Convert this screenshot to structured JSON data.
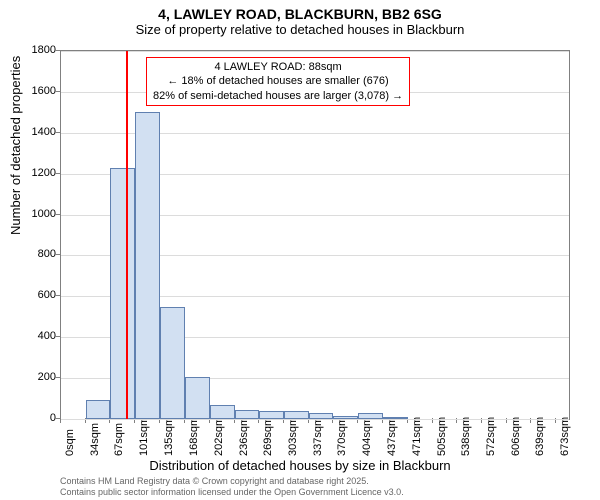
{
  "title": "4, LAWLEY ROAD, BLACKBURN, BB2 6SG",
  "subtitle": "Size of property relative to detached houses in Blackburn",
  "title_fontsize": 14,
  "subtitle_fontsize": 13,
  "chart": {
    "type": "histogram",
    "background_color": "#ffffff",
    "border_color": "#808080",
    "grid_color": "#dcdcdc",
    "bar_fill": "#d2e0f2",
    "bar_border": "#6080b0",
    "marker_color": "#ff0000",
    "marker_x": 88,
    "title_fontsize": 14,
    "label_fontsize": 13,
    "tick_fontsize": 11,
    "ylim": [
      0,
      1800
    ],
    "ytick_step": 200,
    "yticks": [
      0,
      200,
      400,
      600,
      800,
      1000,
      1200,
      1400,
      1600,
      1800
    ],
    "xlim": [
      0,
      690
    ],
    "xticks": [
      {
        "v": 0,
        "label": "0sqm"
      },
      {
        "v": 34,
        "label": "34sqm"
      },
      {
        "v": 67,
        "label": "67sqm"
      },
      {
        "v": 101,
        "label": "101sqm"
      },
      {
        "v": 135,
        "label": "135sqm"
      },
      {
        "v": 168,
        "label": "168sqm"
      },
      {
        "v": 202,
        "label": "202sqm"
      },
      {
        "v": 236,
        "label": "236sqm"
      },
      {
        "v": 269,
        "label": "269sqm"
      },
      {
        "v": 303,
        "label": "303sqm"
      },
      {
        "v": 337,
        "label": "337sqm"
      },
      {
        "v": 370,
        "label": "370sqm"
      },
      {
        "v": 404,
        "label": "404sqm"
      },
      {
        "v": 437,
        "label": "437sqm"
      },
      {
        "v": 471,
        "label": "471sqm"
      },
      {
        "v": 505,
        "label": "505sqm"
      },
      {
        "v": 538,
        "label": "538sqm"
      },
      {
        "v": 572,
        "label": "572sqm"
      },
      {
        "v": 606,
        "label": "606sqm"
      },
      {
        "v": 639,
        "label": "639sqm"
      },
      {
        "v": 673,
        "label": "673sqm"
      }
    ],
    "bars": [
      {
        "x0": 0,
        "x1": 34,
        "count": 0
      },
      {
        "x0": 34,
        "x1": 67,
        "count": 95
      },
      {
        "x0": 67,
        "x1": 101,
        "count": 1230
      },
      {
        "x0": 101,
        "x1": 135,
        "count": 1500
      },
      {
        "x0": 135,
        "x1": 168,
        "count": 550
      },
      {
        "x0": 168,
        "x1": 202,
        "count": 205
      },
      {
        "x0": 202,
        "x1": 236,
        "count": 70
      },
      {
        "x0": 236,
        "x1": 269,
        "count": 45
      },
      {
        "x0": 269,
        "x1": 303,
        "count": 40
      },
      {
        "x0": 303,
        "x1": 337,
        "count": 40
      },
      {
        "x0": 337,
        "x1": 370,
        "count": 30
      },
      {
        "x0": 370,
        "x1": 404,
        "count": 15
      },
      {
        "x0": 404,
        "x1": 437,
        "count": 30
      },
      {
        "x0": 437,
        "x1": 471,
        "count": 10
      },
      {
        "x0": 471,
        "x1": 505,
        "count": 0
      },
      {
        "x0": 505,
        "x1": 538,
        "count": 0
      },
      {
        "x0": 538,
        "x1": 572,
        "count": 0
      },
      {
        "x0": 572,
        "x1": 606,
        "count": 0
      },
      {
        "x0": 606,
        "x1": 639,
        "count": 0
      },
      {
        "x0": 639,
        "x1": 673,
        "count": 0
      }
    ],
    "xlabel": "Distribution of detached houses by size in Blackburn",
    "ylabel": "Number of detached properties"
  },
  "annotation": {
    "border_color": "#ff0000",
    "line1": "4 LAWLEY ROAD: 88sqm",
    "line2": "← 18% of detached houses are smaller (676)",
    "line3": "82% of semi-detached houses are larger (3,078) →",
    "fontsize": 11
  },
  "footer": {
    "line1": "Contains HM Land Registry data © Crown copyright and database right 2025.",
    "line2": "Contains public sector information licensed under the Open Government Licence v3.0.",
    "fontsize": 9,
    "color": "#666666"
  }
}
